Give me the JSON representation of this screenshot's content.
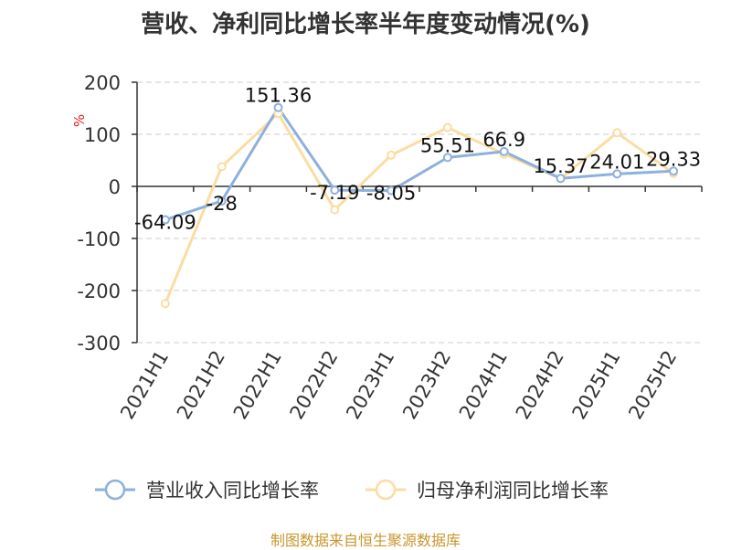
{
  "chart_data": {
    "type": "line",
    "title": "营收、净利同比增长率半年度变动情况(%)",
    "ylabel": "%",
    "xlabel": "",
    "categories": [
      "2021H1",
      "2021H2",
      "2022H1",
      "2022H2",
      "2023H1",
      "2023H2",
      "2024H1",
      "2024H2",
      "2025H1",
      "2025H2"
    ],
    "ylim": [
      -300,
      200
    ],
    "yticks": [
      200,
      100,
      0,
      -100,
      -200,
      -300
    ],
    "grid": "horizontal dashed",
    "legend_position": "bottom",
    "series": [
      {
        "name": "营业收入同比增长率",
        "color": "#8eb0dd",
        "values": [
          -64.09,
          -28,
          151.36,
          -7.19,
          -8.05,
          55.51,
          66.9,
          15.37,
          24.01,
          29.33
        ],
        "labels": [
          "-64.09",
          "-28",
          "151.36",
          "-7.19",
          "-8.05",
          "55.51",
          "66.9",
          "15.37",
          "24.01",
          "29.33"
        ]
      },
      {
        "name": "归母净利润同比增长率",
        "color": "#fbdda2",
        "values": [
          -225,
          38,
          140,
          -45,
          60,
          113,
          62,
          15,
          103,
          25
        ],
        "labels": []
      }
    ]
  },
  "footer": "制图数据来自恒生聚源数据库"
}
